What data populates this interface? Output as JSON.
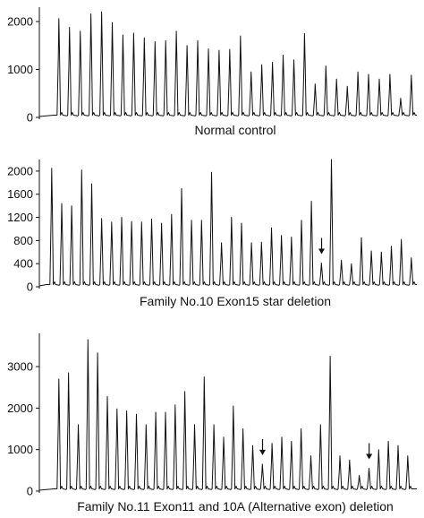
{
  "chart_data": [
    {
      "type": "line",
      "title": "Normal control",
      "xlabel": "",
      "ylabel": "",
      "ylim": [
        0,
        2300
      ],
      "yticks": [
        0,
        1000,
        2000
      ],
      "grid": false,
      "peaks": [
        2060,
        1880,
        1800,
        2160,
        2200,
        1980,
        1720,
        1760,
        1660,
        1580,
        1600,
        1800,
        1500,
        1600,
        1430,
        1400,
        1420,
        1700,
        950,
        1100,
        1150,
        1300,
        1200,
        1750,
        700,
        1070,
        800,
        650,
        950,
        900,
        800,
        900,
        400,
        880
      ],
      "arrows": []
    },
    {
      "type": "line",
      "title": "Family No.10 Exon15 star deletion",
      "xlabel": "",
      "ylabel": "",
      "ylim": [
        0,
        2200
      ],
      "yticks": [
        0,
        400,
        800,
        1200,
        1600,
        2000
      ],
      "grid": false,
      "peaks": [
        2050,
        1440,
        1400,
        2020,
        1780,
        1180,
        1120,
        1200,
        1130,
        1120,
        1170,
        1100,
        1250,
        1700,
        1150,
        1150,
        1980,
        760,
        1200,
        1100,
        760,
        770,
        1020,
        890,
        860,
        1150,
        1480,
        410,
        2200,
        460,
        400,
        850,
        620,
        600,
        700,
        820,
        500
      ],
      "arrows": [
        {
          "peak_index": 27
        }
      ]
    },
    {
      "type": "line",
      "title": "Family No.11 Exon11 and 10A (Alternative exon) deletion",
      "xlabel": "",
      "ylabel": "",
      "ylim": [
        0,
        3800
      ],
      "yticks": [
        0,
        1000,
        2000,
        3000
      ],
      "grid": false,
      "peaks": [
        2700,
        2850,
        1600,
        3650,
        3330,
        2280,
        1980,
        1930,
        1850,
        1600,
        1900,
        1900,
        2080,
        2400,
        1600,
        2750,
        1600,
        1300,
        2050,
        1500,
        1100,
        650,
        1150,
        1300,
        1200,
        1500,
        850,
        1600,
        3250,
        850,
        750,
        380,
        550,
        1000,
        1200,
        1100,
        850
      ],
      "arrows": [
        {
          "peak_index": 21
        },
        {
          "peak_index": 32
        }
      ]
    }
  ]
}
